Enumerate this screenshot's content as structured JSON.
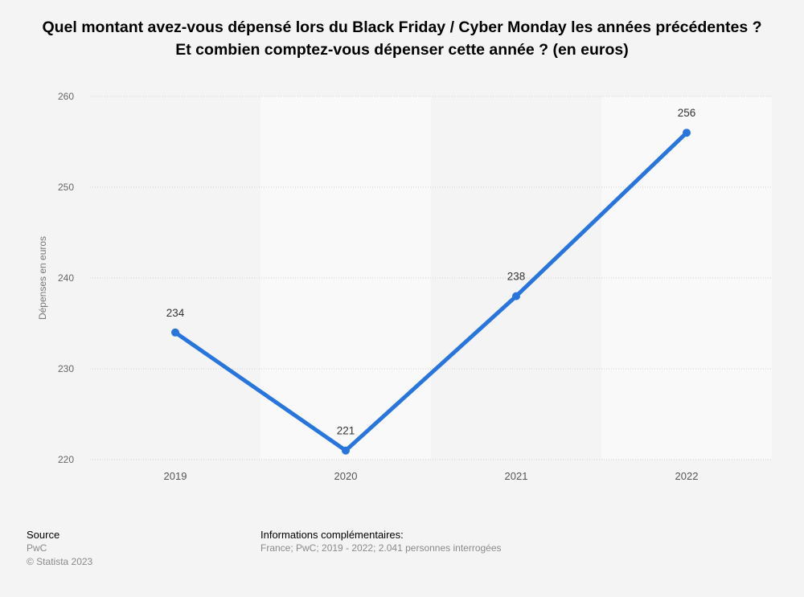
{
  "chart_data": {
    "type": "line",
    "title": "Quel montant avez-vous dépensé lors du Black Friday / Cyber Monday les années précédentes ? Et combien comptez-vous dépenser cette année ? (en euros)",
    "xlabel": "",
    "ylabel": "Dépenses en euros",
    "categories": [
      "2019",
      "2020",
      "2021",
      "2022"
    ],
    "values": [
      234,
      221,
      238,
      256
    ],
    "ylim": [
      220,
      260
    ],
    "yticks": [
      220,
      230,
      240,
      250,
      260
    ],
    "grid": true,
    "color": "#2876dd"
  },
  "footer": {
    "source_label": "Source",
    "source": "PwC",
    "copyright": "© Statista 2023",
    "info_label": "Informations complémentaires:",
    "info": "France; PwC; 2019 - 2022; 2.041 personnes interrogées"
  }
}
